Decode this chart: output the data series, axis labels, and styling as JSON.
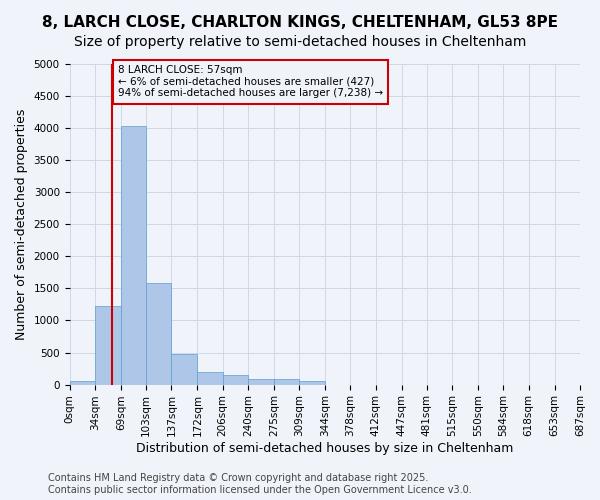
{
  "title_line1": "8, LARCH CLOSE, CHARLTON KINGS, CHELTENHAM, GL53 8PE",
  "title_line2": "Size of property relative to semi-detached houses in Cheltenham",
  "xlabel": "Distribution of semi-detached houses by size in Cheltenham",
  "ylabel": "Number of semi-detached properties",
  "bar_left_edges": [
    0,
    34,
    69,
    103,
    137,
    172,
    206,
    240,
    275,
    309,
    344,
    378,
    412,
    447,
    481,
    515,
    550,
    584,
    618,
    653
  ],
  "bar_widths": [
    34,
    35,
    34,
    34,
    35,
    34,
    34,
    35,
    34,
    35,
    34,
    34,
    35,
    34,
    34,
    35,
    34,
    34,
    35,
    34
  ],
  "bar_heights": [
    50,
    1230,
    4040,
    1590,
    480,
    200,
    150,
    90,
    80,
    50,
    0,
    0,
    0,
    0,
    0,
    0,
    0,
    0,
    0,
    0
  ],
  "bar_color": "#aec6e8",
  "bar_edge_color": "#5a9fd4",
  "tick_positions": [
    0,
    34,
    69,
    103,
    137,
    172,
    206,
    240,
    275,
    309,
    344,
    378,
    412,
    447,
    481,
    515,
    550,
    584,
    618,
    653,
    687
  ],
  "tick_labels": [
    "0sqm",
    "34sqm",
    "69sqm",
    "103sqm",
    "137sqm",
    "172sqm",
    "206sqm",
    "240sqm",
    "275sqm",
    "309sqm",
    "344sqm",
    "378sqm",
    "412sqm",
    "447sqm",
    "481sqm",
    "515sqm",
    "550sqm",
    "584sqm",
    "618sqm",
    "653sqm",
    "687sqm"
  ],
  "ylim": [
    0,
    5000
  ],
  "yticks": [
    0,
    500,
    1000,
    1500,
    2000,
    2500,
    3000,
    3500,
    4000,
    4500,
    5000
  ],
  "property_size": 57,
  "red_line_color": "#cc0000",
  "annotation_text": "8 LARCH CLOSE: 57sqm\n← 6% of semi-detached houses are smaller (427)\n94% of semi-detached houses are larger (7,238) →",
  "grid_color": "#d0d8e8",
  "background_color": "#f0f4fa",
  "footer_text": "Contains HM Land Registry data © Crown copyright and database right 2025.\nContains public sector information licensed under the Open Government Licence v3.0.",
  "title_fontsize": 11,
  "subtitle_fontsize": 10,
  "axis_label_fontsize": 9,
  "tick_fontsize": 7.5,
  "footer_fontsize": 7
}
